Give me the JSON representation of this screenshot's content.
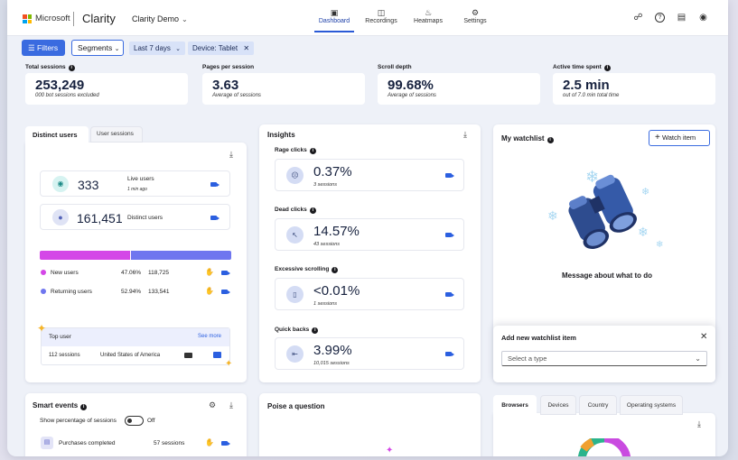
{
  "header": {
    "ms_text": "Microsoft",
    "brand": "Clarity",
    "project": "Clarity Demo",
    "nav": [
      {
        "label": "Dashboard",
        "icon": "dashboard-icon"
      },
      {
        "label": "Recordings",
        "icon": "recordings-icon"
      },
      {
        "label": "Heatmaps",
        "icon": "heatmaps-icon"
      },
      {
        "label": "Settings",
        "icon": "settings-icon"
      }
    ]
  },
  "filters": {
    "filters_label": "Filters",
    "segments_label": "Segments",
    "date_chip": "Last 7 days",
    "device_chip": "Device: Tablet"
  },
  "stats": [
    {
      "label": "Total sessions",
      "value": "253,249",
      "sub": "000 bot sessions excluded"
    },
    {
      "label": "Pages per session",
      "value": "3.63",
      "sub": "Average of sessions"
    },
    {
      "label": "Scroll depth",
      "value": "99.68%",
      "sub": "Average of sessions"
    },
    {
      "label": "Active time spent",
      "value": "2.5 min",
      "sub": "out of 7.0 min total time"
    }
  ],
  "users": {
    "tab_active": "Distinct users",
    "tab_inactive": "User sessions",
    "live_value": "333",
    "live_label": "Live users",
    "live_sub": "1 min ago",
    "distinct_value": "161,451",
    "distinct_label": "Distinct users",
    "new_label": "New users",
    "new_pct": "47.06%",
    "new_count": "118,725",
    "ret_label": "Returning users",
    "ret_pct": "52.94%",
    "ret_count": "133,541",
    "new_fraction": 0.4706,
    "top_user_label": "Top user",
    "see_more": "See more",
    "top_sessions": "112 sessions",
    "top_country": "United States of America",
    "colors": {
      "new": "#d447e7",
      "returning": "#6f76ef"
    }
  },
  "insights": {
    "title": "Insights",
    "items": [
      {
        "label": "Rage clicks",
        "value": "0.37%",
        "sub": "3 sessions"
      },
      {
        "label": "Dead clicks",
        "value": "14.57%",
        "sub": "43 sessions"
      },
      {
        "label": "Excessive scrolling",
        "value": "<0.01%",
        "sub": "1 sessions"
      },
      {
        "label": "Quick backs",
        "value": "3.99%",
        "sub": "10,015 sessions"
      }
    ]
  },
  "watchlist": {
    "title": "My watchlist",
    "button": "Watch item",
    "message": "Message about what to do",
    "add_title": "Add new watchlist item",
    "select_placeholder": "Select a type"
  },
  "smart_events": {
    "title": "Smart events",
    "toggle_label": "Show percentage of sessions",
    "toggle_state": "Off",
    "row_label": "Purchases completed",
    "row_value": "57 sessions"
  },
  "poise": {
    "title": "Poise a question"
  },
  "browsers": {
    "tabs": [
      "Browsers",
      "Devices",
      "Country",
      "Operating systems"
    ]
  }
}
